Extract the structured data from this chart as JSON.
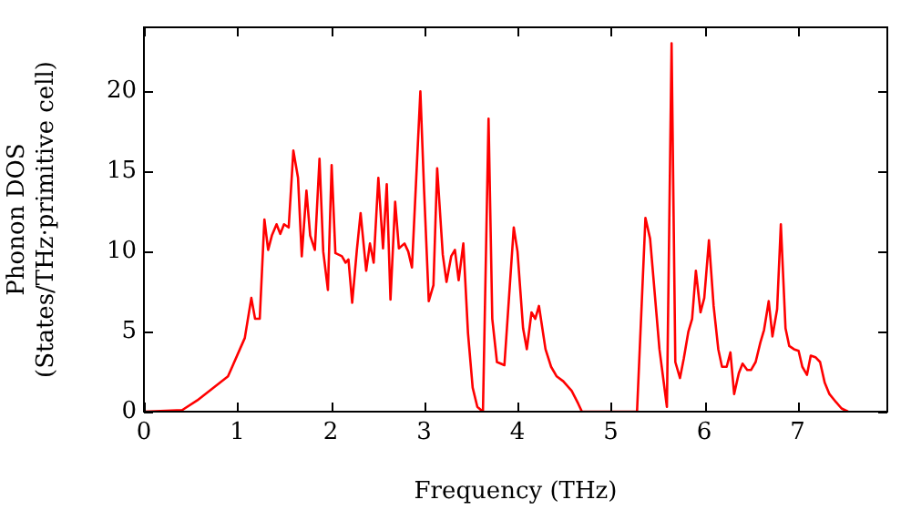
{
  "chart_data": {
    "type": "line",
    "xlabel": "Frequency (THz)",
    "ylabel": "Phonon DOS\n(States/THz·primitive cell)",
    "xlim": [
      0,
      7.96
    ],
    "ylim": [
      0,
      24
    ],
    "xticks": [
      0,
      1,
      2,
      3,
      4,
      5,
      6,
      7
    ],
    "yticks": [
      0,
      5,
      10,
      15,
      20
    ],
    "grid": false,
    "legend": false,
    "marker": "none",
    "line_style": "solid",
    "series": [
      {
        "color": "#ff0000",
        "x": [
          0,
          0.41,
          0.57,
          0.9,
          1.08,
          1.15,
          1.19,
          1.24,
          1.29,
          1.33,
          1.37,
          1.42,
          1.46,
          1.5,
          1.55,
          1.6,
          1.65,
          1.69,
          1.74,
          1.78,
          1.83,
          1.88,
          1.92,
          1.97,
          2.01,
          2.05,
          2.12,
          2.16,
          2.19,
          2.23,
          2.28,
          2.32,
          2.38,
          2.42,
          2.46,
          2.51,
          2.56,
          2.6,
          2.64,
          2.69,
          2.73,
          2.79,
          2.83,
          2.87,
          2.96,
          3.0,
          3.05,
          3.1,
          3.14,
          3.2,
          3.24,
          3.29,
          3.33,
          3.37,
          3.42,
          3.47,
          3.52,
          3.57,
          3.63,
          3.69,
          3.73,
          3.78,
          3.86,
          3.96,
          4.0,
          4.06,
          4.1,
          4.15,
          4.19,
          4.23,
          4.3,
          4.36,
          4.42,
          4.49,
          4.58,
          4.65,
          4.69,
          5.28,
          5.37,
          5.42,
          5.52,
          5.6,
          5.65,
          5.69,
          5.74,
          5.78,
          5.83,
          5.87,
          5.91,
          5.96,
          6.0,
          6.05,
          6.1,
          6.15,
          6.19,
          6.24,
          6.28,
          6.32,
          6.37,
          6.41,
          6.46,
          6.5,
          6.55,
          6.6,
          6.64,
          6.69,
          6.73,
          6.78,
          6.82,
          6.87,
          6.91,
          6.96,
          7.01,
          7.05,
          7.1,
          7.14,
          7.19,
          7.24,
          7.29,
          7.34,
          7.41,
          7.47,
          7.54
        ],
        "values": [
          0,
          0.1,
          0.7,
          2.2,
          4.6,
          7.1,
          5.8,
          5.8,
          12.0,
          10.1,
          11.0,
          11.7,
          11.1,
          11.7,
          11.5,
          16.3,
          14.6,
          9.7,
          13.8,
          11.0,
          10.1,
          15.8,
          10.0,
          7.6,
          15.4,
          9.9,
          9.7,
          9.3,
          9.5,
          6.8,
          10.1,
          12.4,
          8.8,
          10.5,
          9.3,
          14.6,
          10.2,
          14.2,
          7.0,
          13.1,
          10.2,
          10.5,
          10.0,
          9.0,
          20.0,
          13.8,
          6.9,
          7.9,
          15.2,
          9.8,
          8.1,
          9.7,
          10.1,
          8.2,
          10.5,
          4.9,
          1.5,
          0.3,
          0,
          18.3,
          5.8,
          3.1,
          2.9,
          11.5,
          10.0,
          5.2,
          3.9,
          6.2,
          5.8,
          6.6,
          3.9,
          2.8,
          2.2,
          1.9,
          1.3,
          0.5,
          0,
          0,
          12.1,
          10.8,
          3.9,
          0.3,
          23.0,
          3.1,
          2.1,
          3.3,
          5.0,
          5.8,
          8.8,
          6.2,
          7.1,
          10.7,
          6.6,
          3.9,
          2.8,
          2.8,
          3.7,
          1.1,
          2.4,
          3.0,
          2.6,
          2.6,
          3.1,
          4.3,
          5.1,
          6.9,
          4.7,
          6.4,
          11.7,
          5.2,
          4.1,
          3.9,
          3.8,
          2.8,
          2.3,
          3.5,
          3.4,
          3.1,
          1.8,
          1.1,
          0.6,
          0.2,
          0
        ]
      }
    ]
  }
}
